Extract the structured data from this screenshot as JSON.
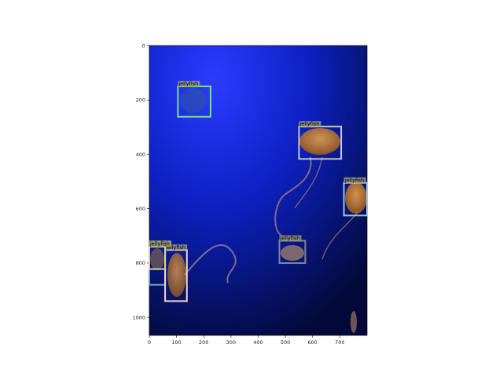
{
  "image": {
    "width_units": 800,
    "height_units": 1066,
    "x_ticks": [
      "0",
      "100",
      "200",
      "300",
      "400",
      "500",
      "600",
      "700"
    ],
    "y_ticks": [
      "0",
      "200",
      "400",
      "600",
      "800",
      "1000"
    ]
  },
  "detections": [
    {
      "label": "jellyfish",
      "x0": 105,
      "y0": 150,
      "x1": 225,
      "y1": 262,
      "color": "#7ee08a"
    },
    {
      "label": "jellyfish",
      "x0": 550,
      "y0": 298,
      "x1": 705,
      "y1": 417,
      "color": "#c7c7c7"
    },
    {
      "label": "jellyfish",
      "x0": 715,
      "y0": 505,
      "x1": 800,
      "y1": 625,
      "color": "#8fc4e6"
    },
    {
      "label": "jellyfish",
      "x0": 478,
      "y0": 718,
      "x1": 573,
      "y1": 800,
      "color": "#8a8a8a"
    },
    {
      "label": "jellyfish",
      "x0": 0,
      "y0": 737,
      "x1": 58,
      "y1": 880,
      "color": "#7fa6b8"
    },
    {
      "label": "jellyfish",
      "x0": 58,
      "y0": 752,
      "x1": 138,
      "y1": 940,
      "color": "#efd9c0"
    },
    {
      "label": "jellyfish",
      "x0": 0,
      "y0": 740,
      "x1": 58,
      "y1": 822,
      "color": "#d7d98a"
    }
  ]
}
